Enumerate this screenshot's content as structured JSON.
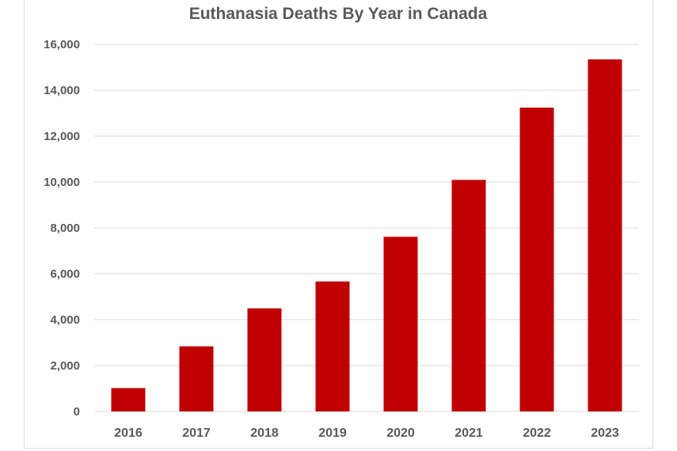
{
  "chart_data": {
    "type": "bar",
    "title": "Euthanasia Deaths By Year in Canada",
    "xlabel": "",
    "ylabel": "",
    "categories": [
      "2016",
      "2017",
      "2018",
      "2019",
      "2020",
      "2021",
      "2022",
      "2023"
    ],
    "values": [
      1018,
      2838,
      4493,
      5665,
      7611,
      10092,
      13241,
      15343
    ],
    "ylim": [
      0,
      16000
    ],
    "yticks": [
      0,
      2000,
      4000,
      6000,
      8000,
      10000,
      12000,
      14000,
      16000
    ],
    "ytick_labels": [
      "0",
      "2,000",
      "4,000",
      "6,000",
      "8,000",
      "10,000",
      "12,000",
      "14,000",
      "16,000"
    ],
    "grid": true,
    "legend": "none",
    "bar_color": "#c00000"
  }
}
